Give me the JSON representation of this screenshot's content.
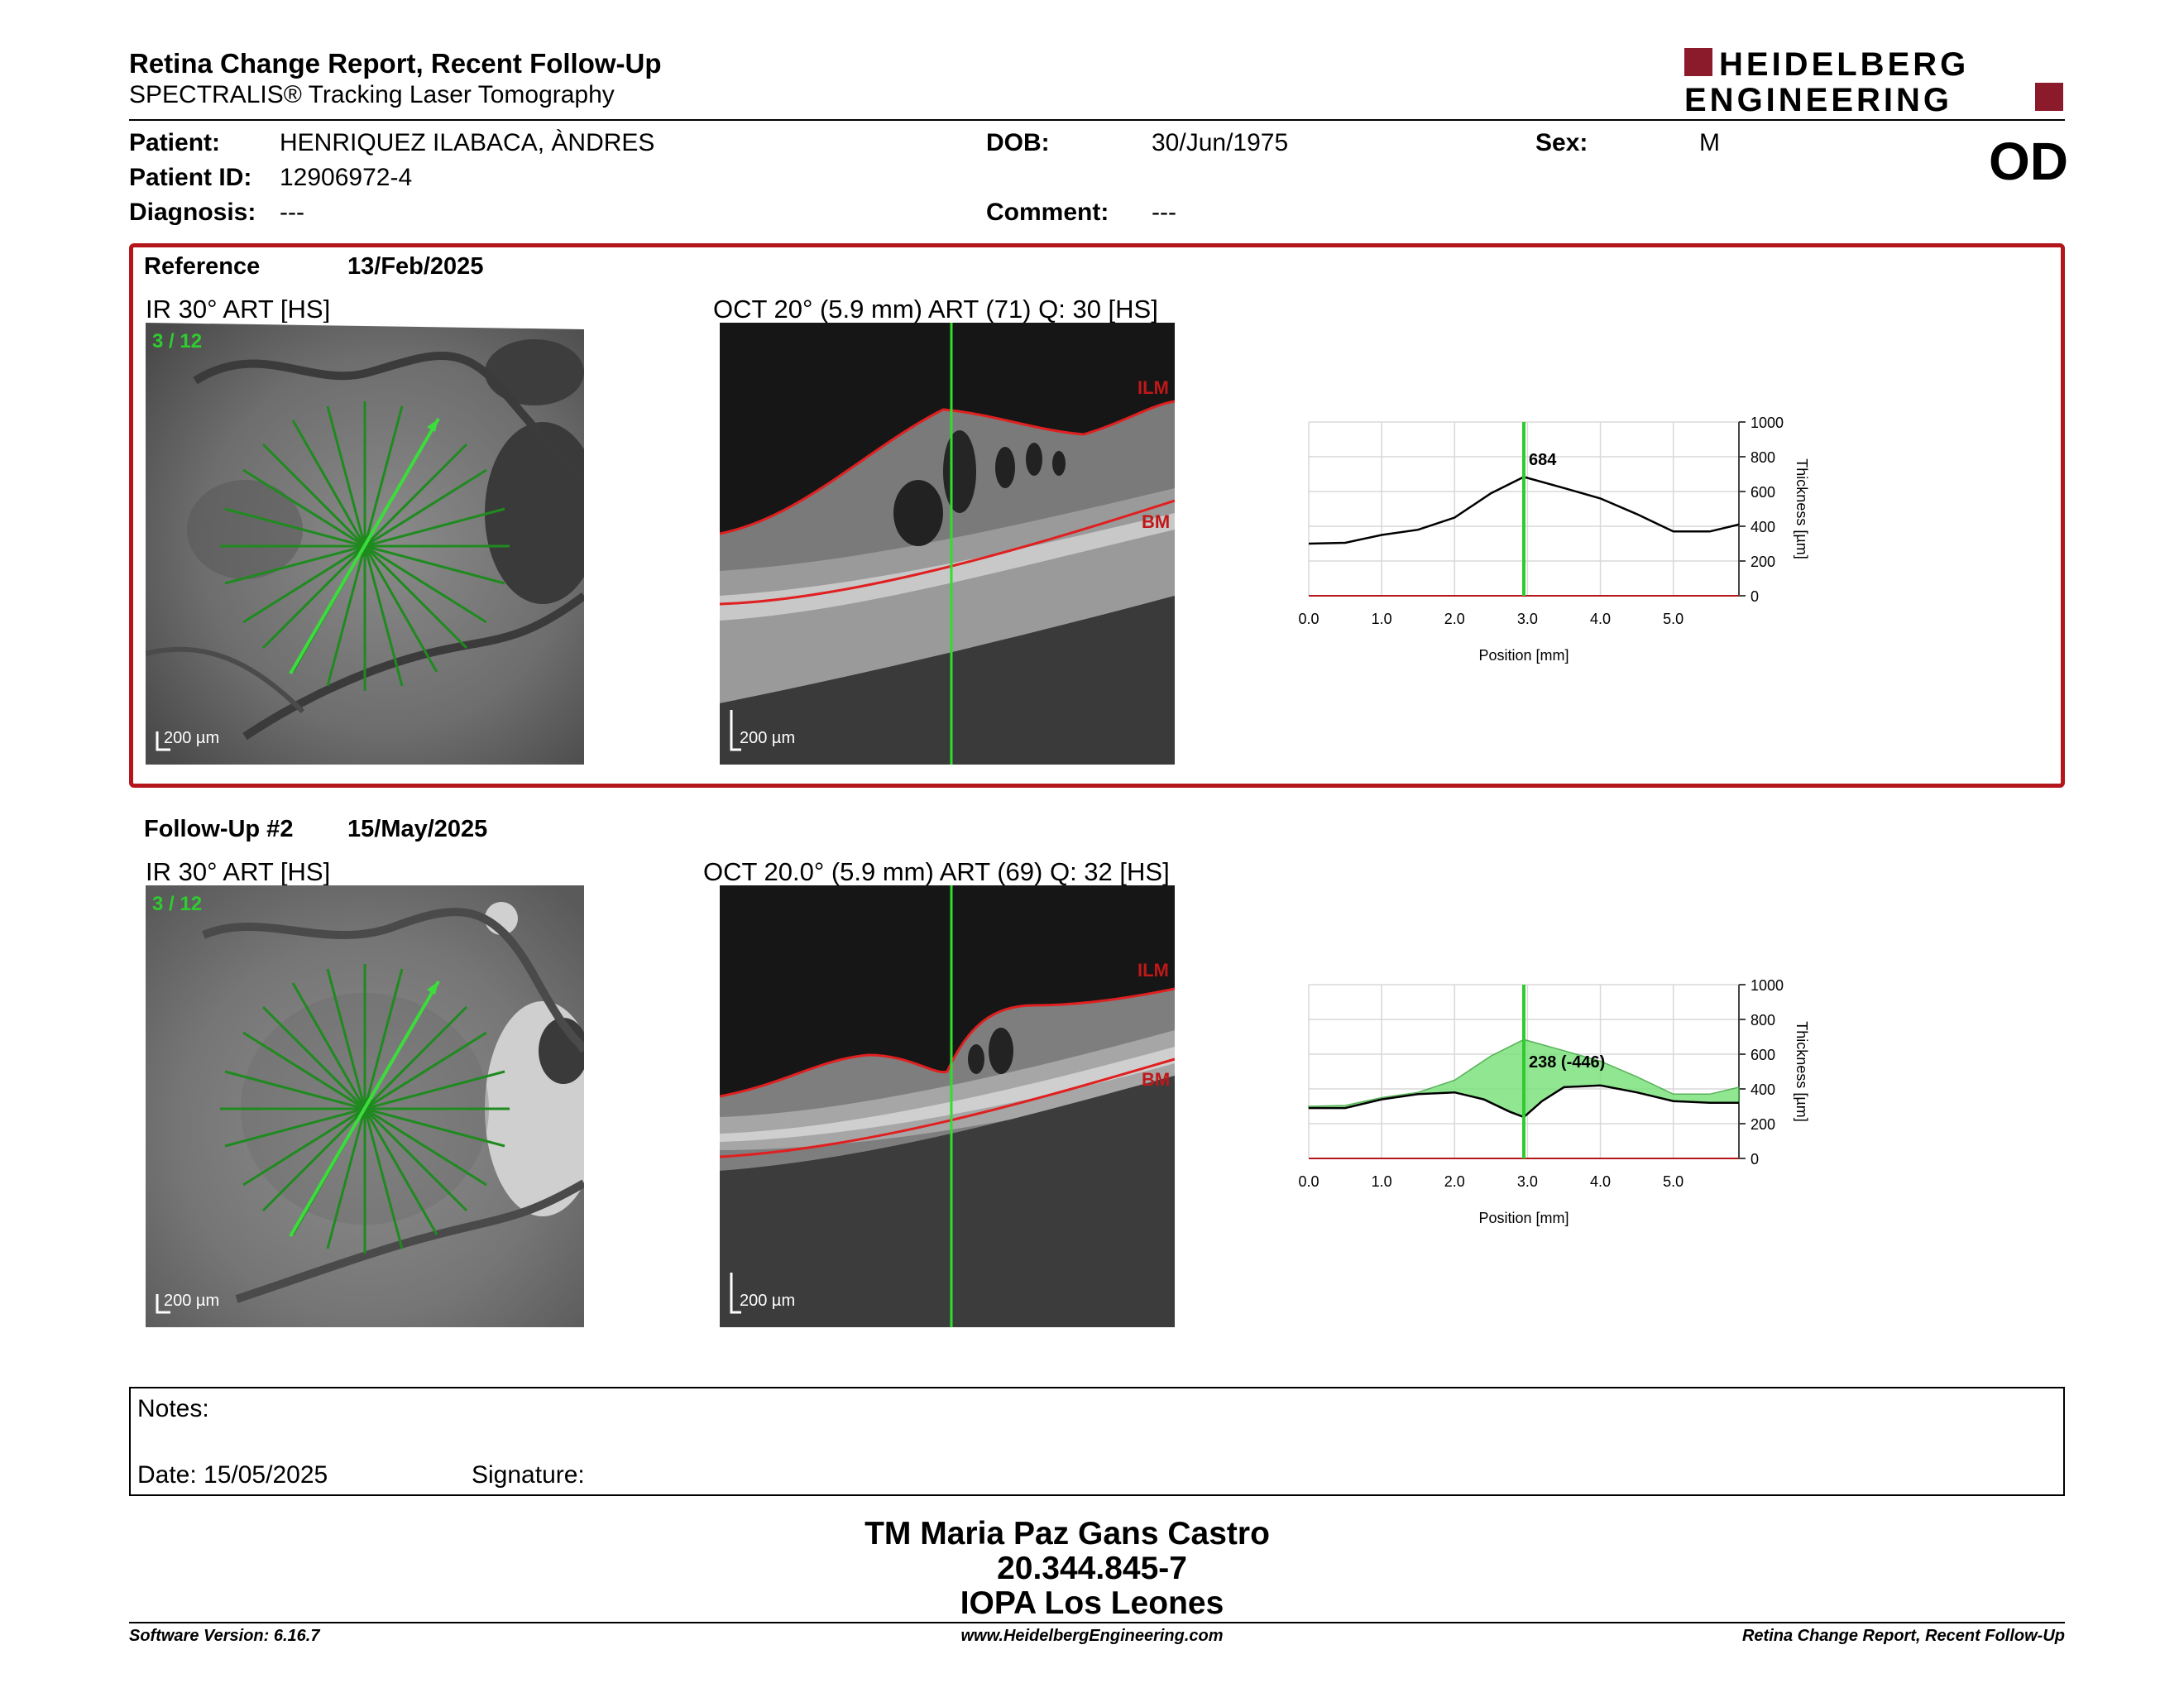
{
  "header": {
    "title": "Retina Change Report, Recent Follow-Up",
    "subtitle": "SPECTRALIS® Tracking Laser Tomography",
    "logo_line1": "HEIDELBERG",
    "logo_line2": "ENGINEERING",
    "eye": "OD",
    "brand_color": "#8b1a2b"
  },
  "patient": {
    "patient_label": "Patient:",
    "patient_value": "HENRIQUEZ ILABACA, ÀNDRES",
    "id_label": "Patient ID:",
    "id_value": "12906972-4",
    "diagnosis_label": "Diagnosis:",
    "diagnosis_value": "---",
    "dob_label": "DOB:",
    "dob_value": "30/Jun/1975",
    "comment_label": "Comment:",
    "comment_value": "---",
    "sex_label": "Sex:",
    "sex_value": "M"
  },
  "reference": {
    "title": "Reference",
    "date": "13/Feb/2025",
    "ir_caption": "IR 30° ART [HS]",
    "ir_counter": "3 / 12",
    "ir_scale": "200 µm",
    "oct_caption": "OCT 20° (5.9 mm) ART (71) Q: 30 [HS]",
    "oct_scale": "200 µm",
    "ilm": "ILM",
    "bm": "BM"
  },
  "followup": {
    "title": "Follow-Up #2",
    "date": "15/May/2025",
    "ir_caption": "IR 30° ART [HS]",
    "ir_counter": "3 / 12",
    "ir_scale": "200 µm",
    "oct_caption": "OCT 20.0° (5.9 mm) ART (69) Q: 32 [HS]",
    "oct_scale": "200 µm",
    "ilm": "ILM",
    "bm": "BM"
  },
  "chart_data": [
    {
      "type": "line",
      "xlabel": "Position [mm]",
      "ylabel": "Thickness [µm]",
      "xlim": [
        0,
        5.9
      ],
      "ylim": [
        0,
        1000
      ],
      "x_ticks": [
        "0.0",
        "1.0",
        "2.0",
        "3.0",
        "4.0",
        "5.0"
      ],
      "y_ticks": [
        "0",
        "200",
        "400",
        "600",
        "800",
        "1000"
      ],
      "marker_x": 2.95,
      "marker_label": "684",
      "series": [
        {
          "x": [
            0,
            0.5,
            1.0,
            1.5,
            2.0,
            2.5,
            2.95,
            3.5,
            4.0,
            4.5,
            5.0,
            5.5,
            5.9
          ],
          "values": [
            300,
            305,
            350,
            380,
            450,
            590,
            684,
            620,
            560,
            470,
            370,
            370,
            410
          ]
        }
      ]
    },
    {
      "type": "area",
      "xlabel": "Position [mm]",
      "ylabel": "Thickness [µm]",
      "xlim": [
        0,
        5.9
      ],
      "ylim": [
        0,
        1000
      ],
      "x_ticks": [
        "0.0",
        "1.0",
        "2.0",
        "3.0",
        "4.0",
        "5.0"
      ],
      "y_ticks": [
        "0",
        "200",
        "400",
        "600",
        "800",
        "1000"
      ],
      "marker_x": 2.95,
      "marker_label": "238 (-446)",
      "fill_color": "#7ee27e",
      "series": [
        {
          "x": [
            0,
            0.5,
            1.0,
            1.5,
            2.0,
            2.5,
            2.95,
            3.5,
            4.0,
            4.5,
            5.0,
            5.5,
            5.9
          ],
          "values": [
            300,
            305,
            350,
            380,
            450,
            590,
            684,
            620,
            560,
            470,
            370,
            370,
            410
          ]
        },
        {
          "x": [
            0,
            0.5,
            1.0,
            1.5,
            2.0,
            2.4,
            2.75,
            2.95,
            3.2,
            3.5,
            4.0,
            4.5,
            5.0,
            5.5,
            5.9
          ],
          "values": [
            290,
            290,
            340,
            370,
            380,
            340,
            270,
            238,
            330,
            410,
            420,
            380,
            330,
            320,
            320
          ]
        }
      ]
    }
  ],
  "notes": {
    "notes_label": "Notes:",
    "date_label": "Date: 15/05/2025",
    "signature_label": "Signature:"
  },
  "signature": {
    "name": "TM Maria Paz Gans Castro",
    "id": "20.344.845-7",
    "org": "IOPA Los Leones"
  },
  "footer": {
    "software": "Software Version: 6.16.7",
    "website": "www.HeidelbergEngineering.com",
    "report": "Retina Change Report, Recent Follow-Up"
  }
}
